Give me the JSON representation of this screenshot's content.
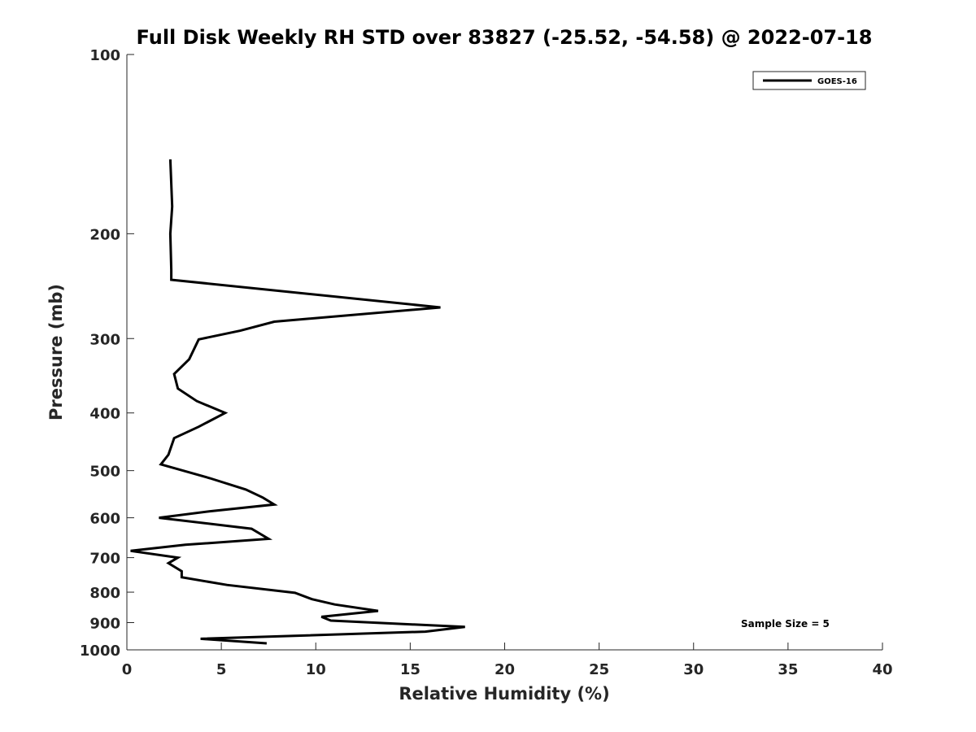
{
  "chart_data": {
    "type": "line",
    "title": "Full Disk Weekly RH STD over 83827 (-25.52, -54.58) @ 2022-07-18",
    "xlabel": "Relative Humidity (%)",
    "ylabel": "Pressure (mb)",
    "xlim": [
      0,
      40
    ],
    "ylim": [
      100,
      1000
    ],
    "y_scale": "log",
    "y_reversed": true,
    "x_ticks": [
      0,
      5,
      10,
      15,
      20,
      25,
      30,
      35,
      40
    ],
    "y_ticks": [
      100,
      200,
      300,
      400,
      500,
      600,
      700,
      800,
      900,
      1000
    ],
    "grid": false,
    "legend_position": "top-right",
    "annotation": "Sample Size = 5",
    "series": [
      {
        "name": "GOES-16",
        "color": "#000000",
        "points": [
          [
            2.3,
            150
          ],
          [
            2.4,
            180
          ],
          [
            2.3,
            200
          ],
          [
            2.35,
            230
          ],
          [
            2.35,
            239
          ],
          [
            16.6,
            266
          ],
          [
            7.8,
            281
          ],
          [
            6.0,
            291
          ],
          [
            3.8,
            301
          ],
          [
            3.3,
            325
          ],
          [
            2.5,
            344
          ],
          [
            2.7,
            364
          ],
          [
            3.7,
            382
          ],
          [
            5.2,
            400
          ],
          [
            3.8,
            422
          ],
          [
            2.5,
            441
          ],
          [
            2.2,
            470
          ],
          [
            1.8,
            488
          ],
          [
            4.4,
            515
          ],
          [
            6.3,
            538
          ],
          [
            7.2,
            555
          ],
          [
            7.8,
            570
          ],
          [
            4.4,
            585
          ],
          [
            1.7,
            600
          ],
          [
            6.6,
            626
          ],
          [
            7.5,
            651
          ],
          [
            3.1,
            666
          ],
          [
            0.2,
            682
          ],
          [
            2.7,
            700
          ],
          [
            2.2,
            715
          ],
          [
            2.9,
            738
          ],
          [
            2.9,
            755
          ],
          [
            5.3,
            778
          ],
          [
            8.9,
            802
          ],
          [
            9.8,
            822
          ],
          [
            11.0,
            839
          ],
          [
            13.3,
            860
          ],
          [
            10.3,
            880
          ],
          [
            10.8,
            893
          ],
          [
            17.9,
            915
          ],
          [
            15.8,
            932
          ],
          [
            3.9,
            958
          ],
          [
            7.4,
            975
          ]
        ]
      }
    ]
  }
}
